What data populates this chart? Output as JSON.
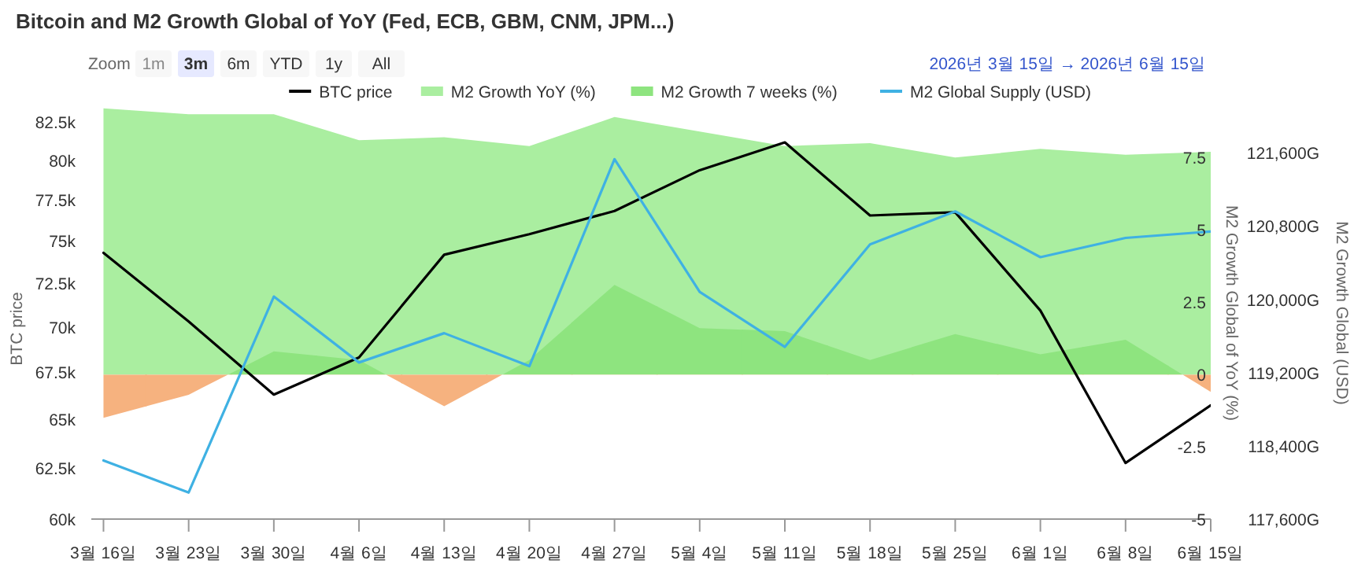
{
  "chart_data": {
    "type": "line",
    "title": "Bitcoin and M2 Growth Global of YoY (Fed, ECB, GBM, CNM, JPM...)",
    "ylabel": "BTC price",
    "y2label": "M2 Growth Global of YoY (%)",
    "y3label": "M2 Growth Global (USD)",
    "annotations": [
      "Zoom",
      "1m",
      "3m",
      "6m",
      "YTD",
      "1y",
      "All",
      "2026년 3월 15일  →  2026년 6월 15일"
    ],
    "x": [
      "2026-03-16",
      "2026-03-23",
      "2026-03-30",
      "2026-04-06",
      "2026-04-13",
      "2026-04-20",
      "2026-04-27",
      "2026-05-04",
      "2026-05-11",
      "2026-05-18",
      "2026-05-25",
      "2026-06-01",
      "2026-06-08",
      "2026-06-15"
    ],
    "xlim": [
      "2026-03-15",
      "2026-06-15"
    ],
    "xticks": [
      {
        "value": "2026-03-16",
        "label": "3월 16일"
      },
      {
        "value": "2026-03-23",
        "label": "3월 23일"
      },
      {
        "value": "2026-03-30",
        "label": "3월 30일"
      },
      {
        "value": "2026-04-06",
        "label": "4월 6일"
      },
      {
        "value": "2026-04-13",
        "label": "4월 13일"
      },
      {
        "value": "2026-04-20",
        "label": "4월 20일"
      },
      {
        "value": "2026-04-27",
        "label": "4월 27일"
      },
      {
        "value": "2026-05-04",
        "label": "5월 4일"
      },
      {
        "value": "2026-05-11",
        "label": "5월 11일"
      },
      {
        "value": "2026-05-18",
        "label": "5월 18일"
      },
      {
        "value": "2026-05-25",
        "label": "5월 25일"
      },
      {
        "value": "2026-06-01",
        "label": "6월 1일"
      },
      {
        "value": "2026-06-08",
        "label": "6월 8일"
      },
      {
        "value": "2026-06-15",
        "label": "6월 15일"
      }
    ],
    "log": "y",
    "ylim": [
      60000,
      83500
    ],
    "yticks": [
      {
        "value": 60000,
        "label": "60k"
      },
      {
        "value": 62500,
        "label": "62.5k"
      },
      {
        "value": 65000,
        "label": "65k"
      },
      {
        "value": 67500,
        "label": "67.5k"
      },
      {
        "value": 70000,
        "label": "70k"
      },
      {
        "value": 72500,
        "label": "72.5k"
      },
      {
        "value": 75000,
        "label": "75k"
      },
      {
        "value": 77500,
        "label": "77.5k"
      },
      {
        "value": 80000,
        "label": "80k"
      },
      {
        "value": 82500,
        "label": "82.5k"
      }
    ],
    "y2lim": [
      -5,
      9.25
    ],
    "y2ticks": [
      {
        "value": -5,
        "label": "-5"
      },
      {
        "value": -2.5,
        "label": "-2.5"
      },
      0,
      2.5,
      5,
      7.5
    ],
    "y3lim": [
      117600,
      122100
    ],
    "y3ticks": [
      {
        "value": 117600,
        "label": "117,600G"
      },
      {
        "value": 118400,
        "label": "118,400G"
      },
      {
        "value": 119200,
        "label": "119,200G"
      },
      {
        "value": 120000,
        "label": "120,000G"
      },
      {
        "value": 120800,
        "label": "120,800G"
      },
      {
        "value": 121600,
        "label": "121,600G"
      }
    ],
    "legend": "top",
    "marker": "none",
    "line_style": "solid",
    "series": [
      {
        "name": "BTC price",
        "axis": "y",
        "color": "#000000",
        "values": [
          74280,
          70300,
          66300,
          68300,
          74170,
          75400,
          76820,
          79370,
          81160,
          76540,
          76740,
          70920,
          62760,
          65730
        ]
      },
      {
        "name": "M2 Growth YoY (%)",
        "type": "area",
        "axis": "y2",
        "color": "#aaeea0",
        "values": [
          9.2,
          9.0,
          9.0,
          8.1,
          8.2,
          7.9,
          8.9,
          8.4,
          7.9,
          8.0,
          7.5,
          7.8,
          7.6,
          7.7
        ]
      },
      {
        "name": "M2 Growth 7 weeks (%)",
        "type": "area",
        "axis": "y2",
        "color": "#8ee47f",
        "colors": [
          "#f6b27f",
          "#f6b27f",
          "#8ee47f",
          "#8ee47f",
          "#f6b27f",
          "#8ee47f",
          "#8ee47f",
          "#8ee47f",
          "#8ee47f",
          "#8ee47f",
          "#8ee47f",
          "#8ee47f",
          "#8ee47f",
          "#f6b27f"
        ],
        "values": [
          -1.5,
          -0.7,
          0.8,
          0.5,
          -1.1,
          0.5,
          3.1,
          1.6,
          1.5,
          0.5,
          1.4,
          0.7,
          1.2,
          -0.6
        ]
      },
      {
        "name": "M2 Global Supply (USD)",
        "axis": "y3",
        "color": "#3fb1e3",
        "values": [
          118240,
          117890,
          120030,
          119310,
          119630,
          119270,
          121530,
          120080,
          119480,
          120600,
          120960,
          120460,
          120670,
          120740
        ]
      }
    ]
  }
}
